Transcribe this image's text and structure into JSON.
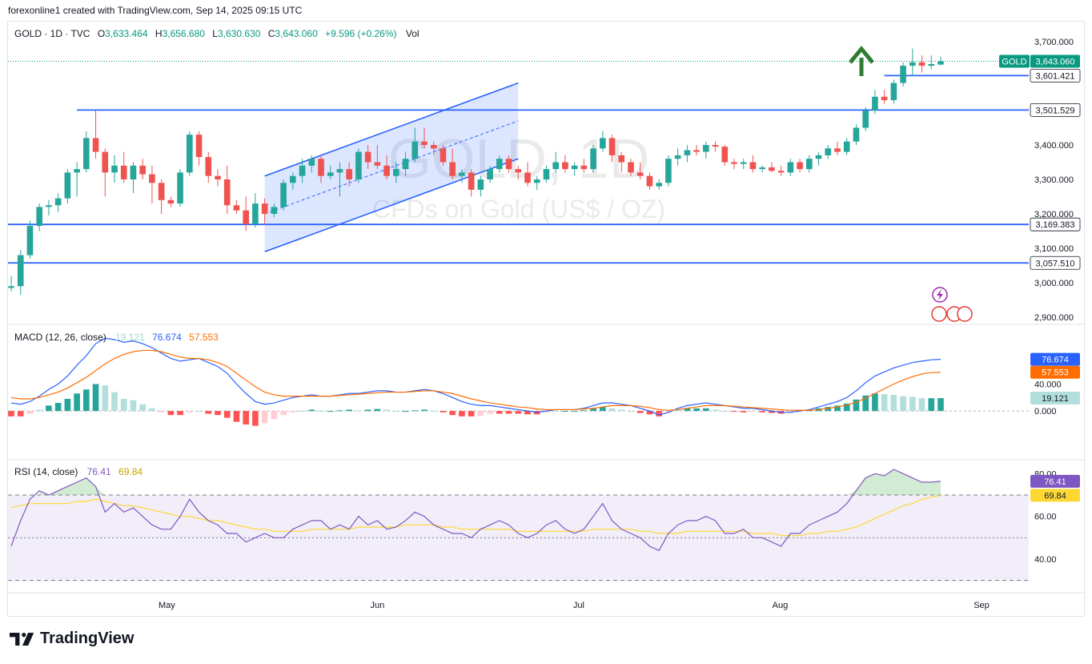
{
  "header": {
    "text": "forexonline1 created with TradingView.com, Sep 14, 2025 09:15 UTC"
  },
  "legend": {
    "symbol": "GOLD · 1D · TVC",
    "o_label": "O",
    "o": "3,633.464",
    "h_label": "H",
    "h": "3,656.680",
    "l_label": "L",
    "l": "3,630.630",
    "c_label": "C",
    "c": "3,643.060",
    "chg": "+9.596 (+0.26%)",
    "vol": "Vol"
  },
  "watermark": {
    "title": "GOLD, 1D",
    "subtitle": "CFDs on Gold (US$ / OZ)"
  },
  "footer": {
    "brand": "TradingView"
  },
  "colors": {
    "up": "#26a69a",
    "down": "#ef5350",
    "level": "#2962ff",
    "macd": "#2962ff",
    "signal": "#ff6d00",
    "rsi": "#7e57c2",
    "rsi_ma": "#fdd835",
    "arrow": "#2e7d32"
  },
  "chart_data": [
    {
      "type": "candlestick",
      "title": "GOLD · 1D · TVC",
      "x_ticks": [
        "May",
        "Jun",
        "Jul",
        "Aug",
        "Sep"
      ],
      "y_ticks": [
        "3,700.000",
        "3,600.000",
        "3,500.000",
        "3,400.000",
        "3,300.000",
        "3,200.000",
        "3,100.000",
        "3,000.000",
        "2,900.000"
      ],
      "ylim": [
        2880,
        3740
      ],
      "candles": [
        [
          2985,
          3020,
          2975,
          2990
        ],
        [
          2990,
          3095,
          2965,
          3080
        ],
        [
          3080,
          3180,
          3070,
          3165
        ],
        [
          3165,
          3230,
          3150,
          3220
        ],
        [
          3220,
          3240,
          3195,
          3225
        ],
        [
          3225,
          3260,
          3205,
          3245
        ],
        [
          3245,
          3330,
          3230,
          3320
        ],
        [
          3320,
          3350,
          3250,
          3330
        ],
        [
          3330,
          3440,
          3320,
          3420
        ],
        [
          3420,
          3500,
          3360,
          3380
        ],
        [
          3380,
          3390,
          3250,
          3320
        ],
        [
          3320,
          3370,
          3290,
          3340
        ],
        [
          3340,
          3380,
          3290,
          3300
        ],
        [
          3300,
          3350,
          3260,
          3340
        ],
        [
          3340,
          3360,
          3300,
          3315
        ],
        [
          3315,
          3340,
          3230,
          3290
        ],
        [
          3290,
          3300,
          3200,
          3240
        ],
        [
          3240,
          3250,
          3220,
          3230
        ],
        [
          3230,
          3330,
          3220,
          3320
        ],
        [
          3320,
          3440,
          3310,
          3430
        ],
        [
          3430,
          3440,
          3340,
          3365
        ],
        [
          3365,
          3380,
          3290,
          3310
        ],
        [
          3310,
          3330,
          3280,
          3300
        ],
        [
          3300,
          3340,
          3200,
          3225
        ],
        [
          3225,
          3240,
          3200,
          3210
        ],
        [
          3210,
          3250,
          3150,
          3170
        ],
        [
          3170,
          3260,
          3160,
          3230
        ],
        [
          3230,
          3245,
          3170,
          3200
        ],
        [
          3200,
          3230,
          3190,
          3220
        ],
        [
          3220,
          3300,
          3210,
          3290
        ],
        [
          3290,
          3320,
          3270,
          3310
        ],
        [
          3310,
          3360,
          3290,
          3340
        ],
        [
          3340,
          3370,
          3320,
          3360
        ],
        [
          3360,
          3370,
          3290,
          3310
        ],
        [
          3310,
          3340,
          3300,
          3320
        ],
        [
          3320,
          3350,
          3250,
          3330
        ],
        [
          3330,
          3350,
          3280,
          3300
        ],
        [
          3300,
          3390,
          3290,
          3380
        ],
        [
          3380,
          3400,
          3330,
          3350
        ],
        [
          3350,
          3400,
          3330,
          3340
        ],
        [
          3340,
          3370,
          3300,
          3310
        ],
        [
          3310,
          3350,
          3290,
          3330
        ],
        [
          3330,
          3380,
          3310,
          3360
        ],
        [
          3360,
          3450,
          3350,
          3410
        ],
        [
          3410,
          3450,
          3390,
          3400
        ],
        [
          3400,
          3410,
          3370,
          3390
        ],
        [
          3390,
          3400,
          3340,
          3350
        ],
        [
          3350,
          3390,
          3300,
          3310
        ],
        [
          3310,
          3330,
          3290,
          3320
        ],
        [
          3320,
          3330,
          3250,
          3270
        ],
        [
          3270,
          3310,
          3250,
          3300
        ],
        [
          3300,
          3340,
          3290,
          3330
        ],
        [
          3330,
          3370,
          3320,
          3360
        ],
        [
          3360,
          3370,
          3320,
          3330
        ],
        [
          3330,
          3340,
          3300,
          3320
        ],
        [
          3320,
          3350,
          3280,
          3290
        ],
        [
          3290,
          3310,
          3270,
          3300
        ],
        [
          3300,
          3340,
          3290,
          3330
        ],
        [
          3330,
          3380,
          3320,
          3350
        ],
        [
          3350,
          3370,
          3320,
          3330
        ],
        [
          3330,
          3350,
          3310,
          3340
        ],
        [
          3340,
          3360,
          3320,
          3330
        ],
        [
          3330,
          3400,
          3320,
          3390
        ],
        [
          3390,
          3440,
          3380,
          3420
        ],
        [
          3420,
          3430,
          3350,
          3370
        ],
        [
          3370,
          3380,
          3320,
          3350
        ],
        [
          3350,
          3360,
          3310,
          3320
        ],
        [
          3320,
          3350,
          3300,
          3310
        ],
        [
          3310,
          3320,
          3270,
          3280
        ],
        [
          3280,
          3300,
          3270,
          3290
        ],
        [
          3290,
          3370,
          3280,
          3360
        ],
        [
          3360,
          3390,
          3340,
          3370
        ],
        [
          3370,
          3400,
          3350,
          3385
        ],
        [
          3385,
          3400,
          3370,
          3380
        ],
        [
          3380,
          3410,
          3360,
          3400
        ],
        [
          3400,
          3410,
          3380,
          3395
        ],
        [
          3395,
          3400,
          3340,
          3350
        ],
        [
          3350,
          3360,
          3330,
          3345
        ],
        [
          3345,
          3360,
          3330,
          3350
        ],
        [
          3350,
          3370,
          3320,
          3330
        ],
        [
          3330,
          3340,
          3320,
          3335
        ],
        [
          3335,
          3350,
          3320,
          3325
        ],
        [
          3325,
          3340,
          3310,
          3320
        ],
        [
          3320,
          3360,
          3310,
          3350
        ],
        [
          3350,
          3360,
          3320,
          3330
        ],
        [
          3330,
          3370,
          3320,
          3360
        ],
        [
          3360,
          3380,
          3340,
          3370
        ],
        [
          3370,
          3400,
          3360,
          3390
        ],
        [
          3390,
          3410,
          3370,
          3380
        ],
        [
          3380,
          3420,
          3370,
          3410
        ],
        [
          3410,
          3460,
          3400,
          3450
        ],
        [
          3450,
          3510,
          3440,
          3500
        ],
        [
          3500,
          3560,
          3490,
          3540
        ],
        [
          3540,
          3560,
          3520,
          3530
        ],
        [
          3530,
          3590,
          3520,
          3580
        ],
        [
          3580,
          3640,
          3570,
          3630
        ],
        [
          3630,
          3680,
          3600,
          3640
        ],
        [
          3640,
          3660,
          3610,
          3630
        ],
        [
          3630,
          3660,
          3620,
          3635
        ],
        [
          3633.464,
          3656.68,
          3630.63,
          3643.06
        ]
      ],
      "levels": [
        {
          "label": "3,601.421",
          "price": 3601.421
        },
        {
          "label": "3,501.529",
          "price": 3501.529
        },
        {
          "label": "3,169.383",
          "price": 3169.383
        },
        {
          "label": "3,057.510",
          "price": 3057.51
        }
      ],
      "last_price": {
        "tag": "GOLD",
        "label": "3,643.060",
        "price": 3643.06
      },
      "channel": {
        "start_index": 27,
        "end_index": 54,
        "upper": [
          3310,
          3580
        ],
        "lower": [
          3090,
          3360
        ]
      }
    },
    {
      "type": "macd",
      "title": "MACD (12, 26, close)",
      "legend": {
        "hist": "19.121",
        "macd": "76.674",
        "signal": "57.553"
      },
      "y_ticks": [
        "40.000",
        "0.000"
      ],
      "ylim": [
        -70,
        125
      ],
      "macd": [
        12,
        10,
        14,
        22,
        32,
        40,
        52,
        68,
        82,
        100,
        108,
        106,
        102,
        104,
        100,
        94,
        86,
        78,
        74,
        76,
        78,
        72,
        66,
        56,
        40,
        26,
        14,
        10,
        12,
        16,
        20,
        22,
        24,
        22,
        22,
        24,
        26,
        26,
        28,
        30,
        30,
        28,
        28,
        30,
        32,
        30,
        26,
        20,
        14,
        10,
        8,
        8,
        6,
        4,
        2,
        0,
        -2,
        0,
        2,
        2,
        2,
        4,
        8,
        12,
        12,
        10,
        8,
        4,
        0,
        -6,
        -2,
        4,
        8,
        10,
        12,
        10,
        8,
        6,
        4,
        4,
        2,
        0,
        -2,
        -2,
        0,
        2,
        6,
        10,
        14,
        20,
        30,
        42,
        52,
        58,
        64,
        68,
        72,
        74,
        76,
        76.674
      ],
      "signal": [
        20,
        18,
        18,
        20,
        24,
        28,
        34,
        42,
        50,
        60,
        70,
        78,
        84,
        88,
        90,
        90,
        88,
        84,
        80,
        78,
        78,
        76,
        72,
        66,
        56,
        46,
        36,
        28,
        24,
        22,
        22,
        22,
        22,
        22,
        22,
        23,
        24,
        25,
        26,
        27,
        28,
        28,
        28,
        29,
        30,
        30,
        28,
        26,
        22,
        18,
        15,
        12,
        10,
        8,
        6,
        5,
        3,
        2,
        2,
        2,
        2,
        3,
        4,
        6,
        8,
        8,
        8,
        7,
        5,
        2,
        1,
        2,
        4,
        6,
        8,
        8,
        8,
        7,
        6,
        5,
        4,
        3,
        2,
        1,
        1,
        1,
        2,
        4,
        6,
        9,
        13,
        19,
        26,
        33,
        40,
        46,
        51,
        55,
        57,
        57.553
      ]
    },
    {
      "type": "rsi",
      "title": "RSI (14, close)",
      "legend": {
        "rsi": "76.41",
        "ma": "69.84"
      },
      "y_ticks": [
        "80.00",
        "60.00",
        "40.00"
      ],
      "ylim": [
        25,
        85
      ],
      "bands": [
        70,
        50,
        30
      ],
      "rsi": [
        46,
        58,
        68,
        72,
        70,
        72,
        74,
        76,
        78,
        74,
        62,
        66,
        62,
        64,
        60,
        56,
        54,
        54,
        60,
        68,
        62,
        58,
        56,
        52,
        52,
        48,
        50,
        52,
        50,
        50,
        54,
        56,
        58,
        58,
        54,
        56,
        54,
        60,
        56,
        58,
        54,
        55,
        58,
        62,
        60,
        56,
        54,
        52,
        52,
        50,
        54,
        56,
        58,
        56,
        52,
        50,
        52,
        56,
        58,
        54,
        52,
        54,
        60,
        66,
        58,
        54,
        52,
        50,
        46,
        44,
        52,
        56,
        58,
        58,
        60,
        58,
        52,
        52,
        54,
        50,
        50,
        48,
        46,
        52,
        52,
        56,
        58,
        60,
        62,
        66,
        72,
        78,
        80,
        79,
        82,
        80,
        78,
        76,
        76,
        76.41
      ],
      "ma": [
        64,
        65,
        66,
        66,
        66,
        66,
        66,
        67,
        67,
        68,
        67,
        66,
        65,
        65,
        64,
        63,
        62,
        61,
        60,
        60,
        59,
        58,
        58,
        57,
        56,
        55,
        54,
        54,
        53,
        53,
        53,
        53,
        54,
        54,
        54,
        54,
        54,
        55,
        55,
        55,
        55,
        55,
        56,
        56,
        56,
        56,
        55,
        55,
        54,
        54,
        54,
        54,
        54,
        54,
        53,
        53,
        53,
        53,
        53,
        53,
        53,
        53,
        54,
        54,
        54,
        54,
        54,
        53,
        53,
        52,
        52,
        52,
        53,
        53,
        53,
        53,
        53,
        53,
        53,
        52,
        52,
        52,
        51,
        51,
        51,
        52,
        52,
        53,
        53,
        54,
        55,
        57,
        59,
        61,
        63,
        65,
        66,
        68,
        69,
        69.84
      ]
    }
  ]
}
